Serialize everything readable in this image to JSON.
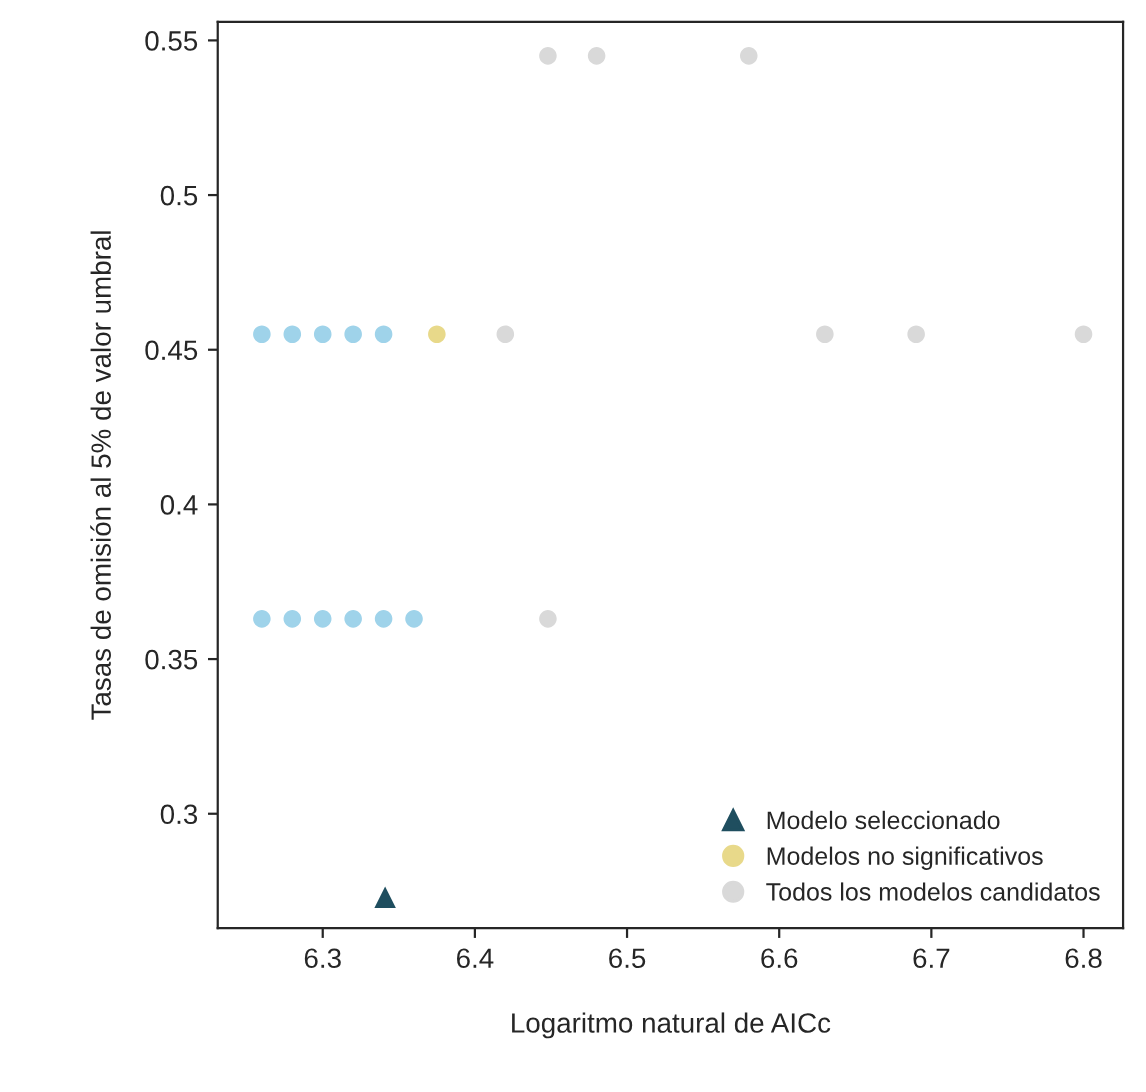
{
  "chart_data": {
    "type": "scatter",
    "xlabel": "Logaritmo natural de AICc",
    "ylabel": "Tasas de omisión al 5% de valor umbral",
    "xlim": [
      6.231,
      6.826
    ],
    "ylim": [
      0.263,
      0.556
    ],
    "xticks": [
      6.3,
      6.4,
      6.5,
      6.6,
      6.7,
      6.8
    ],
    "yticks": [
      0.3,
      0.35,
      0.4,
      0.45,
      0.5,
      0.55
    ],
    "grid": false,
    "legend": "bottom right",
    "series": [
      {
        "name": "Todos los modelos candidatos",
        "color": "#d9d9d9",
        "marker": "circle",
        "x": [
          6.448,
          6.48,
          6.58,
          6.42,
          6.63,
          6.69,
          6.8,
          6.448
        ],
        "values": [
          0.545,
          0.545,
          0.545,
          0.455,
          0.455,
          0.455,
          0.455,
          0.363
        ]
      },
      {
        "color": "#9fd3ea",
        "marker": "circle",
        "x": [
          6.26,
          6.28,
          6.3,
          6.32,
          6.34,
          6.26,
          6.28,
          6.3,
          6.32,
          6.34,
          6.36
        ],
        "values": [
          0.455,
          0.455,
          0.455,
          0.455,
          0.455,
          0.363,
          0.363,
          0.363,
          0.363,
          0.363,
          0.363
        ]
      },
      {
        "name": "Modelos no significativos",
        "color": "#e8d98a",
        "marker": "circle",
        "x": [
          6.375
        ],
        "values": [
          0.455
        ]
      },
      {
        "name": "Modelo seleccionado",
        "color": "#1f4e5f",
        "marker": "triangle",
        "x": [
          6.341
        ],
        "values": [
          0.273
        ]
      }
    ]
  }
}
